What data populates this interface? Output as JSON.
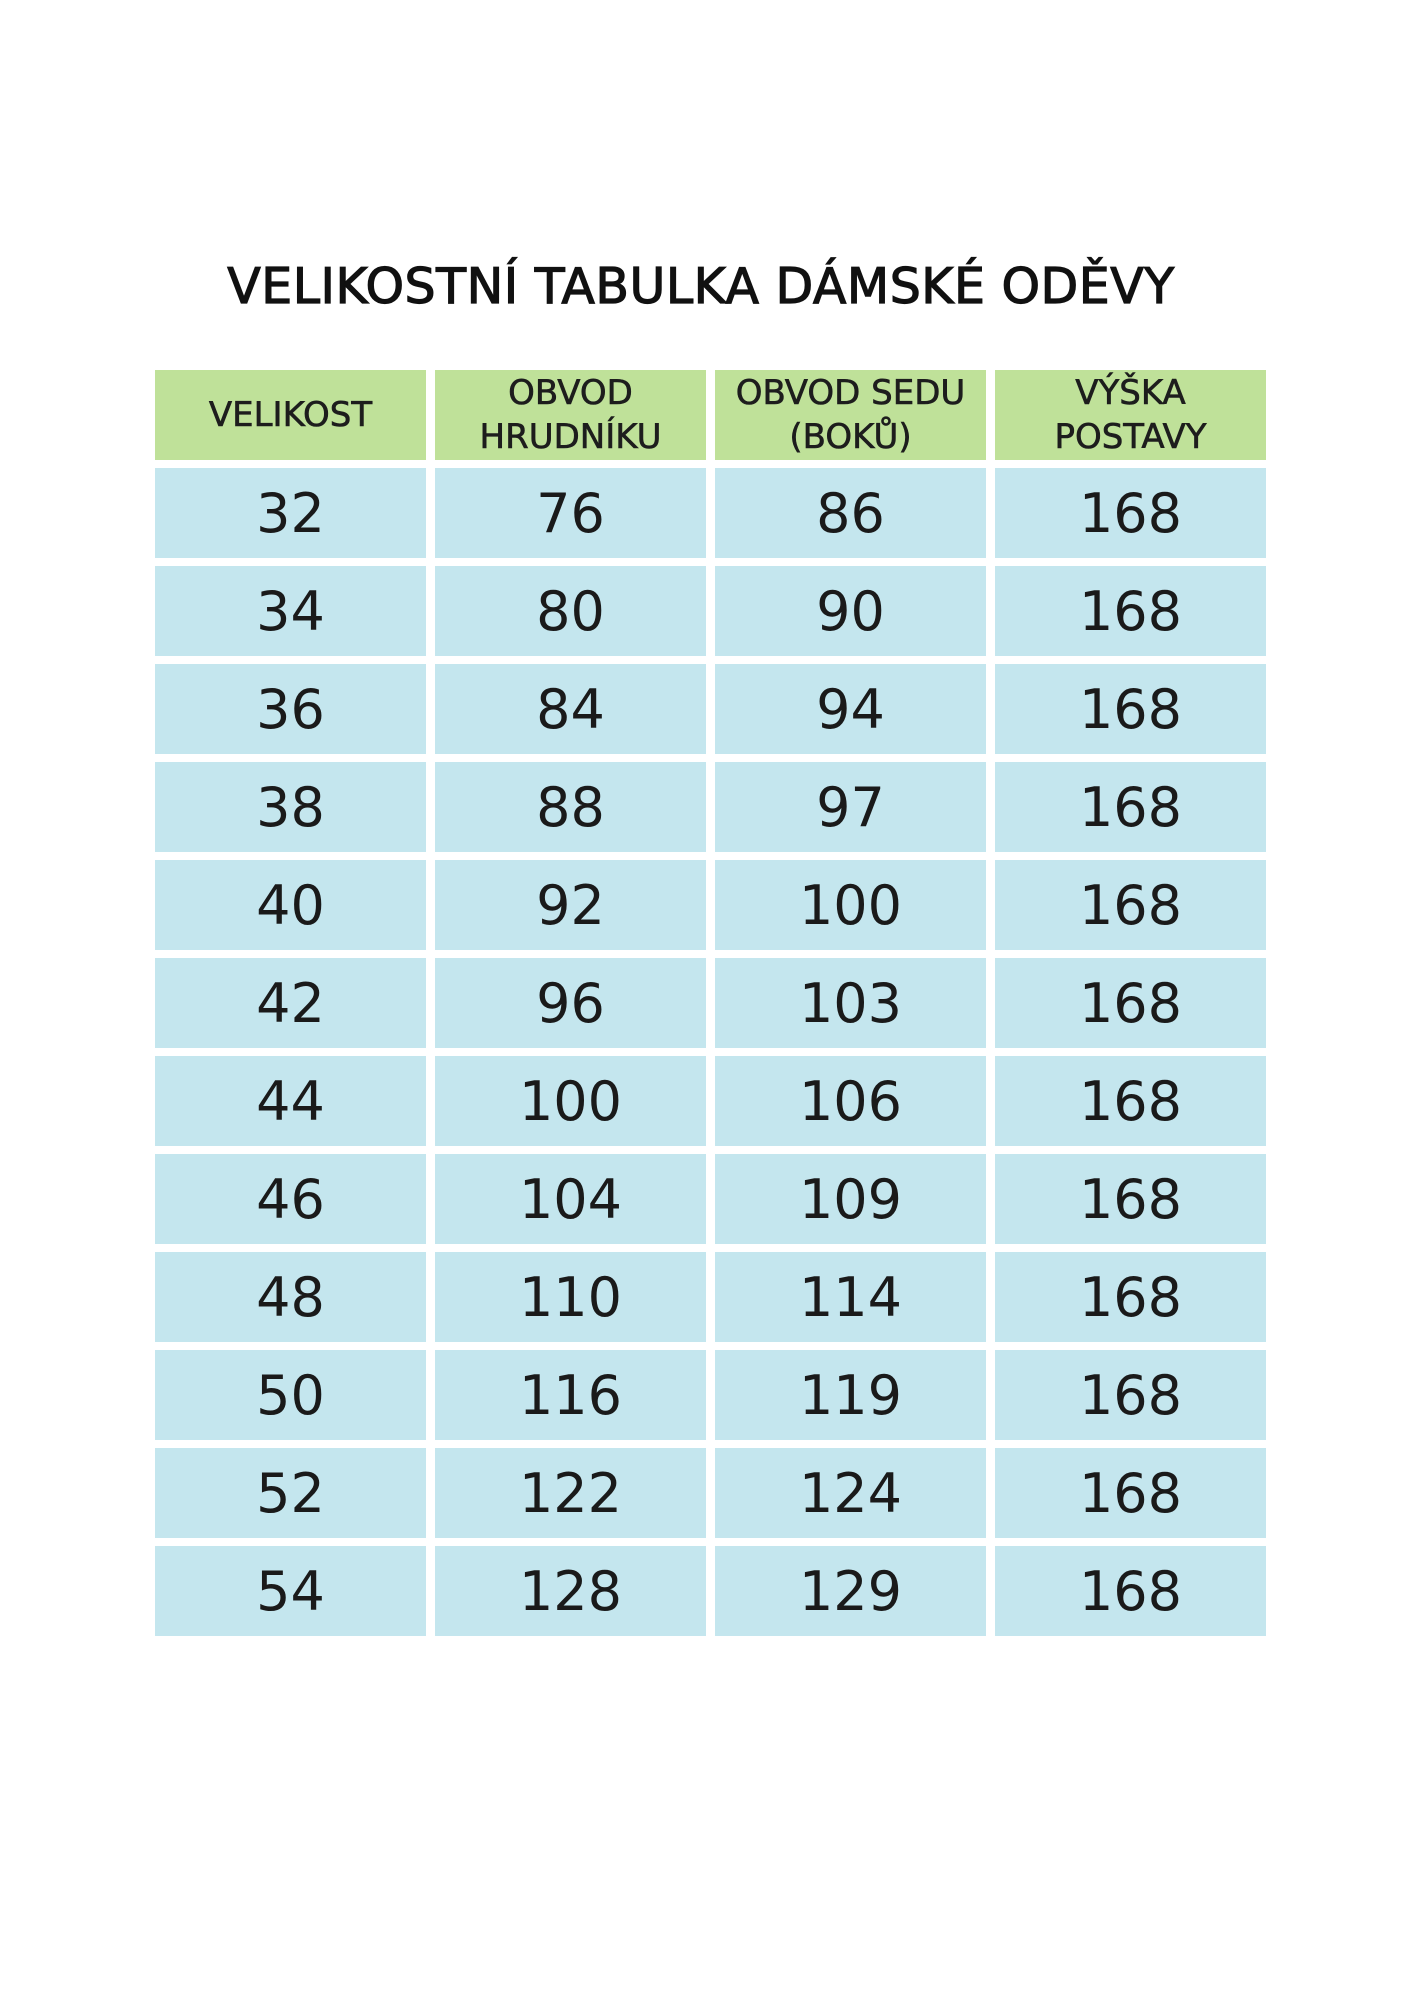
{
  "title": "VELIKOSTNÍ TABULKA DÁMSKÉ ODĚVY",
  "colors": {
    "header_bg": "#bfe199",
    "cell_bg": "#c4e6ee"
  },
  "headers": [
    {
      "line1": "VELIKOST",
      "line2": ""
    },
    {
      "line1": "OBVOD",
      "line2": "HRUDNÍKU"
    },
    {
      "line1": "OBVOD SEDU",
      "line2": "(BOKŮ)"
    },
    {
      "line1": "VÝŠKA",
      "line2": "POSTAVY"
    }
  ],
  "rows": [
    [
      "32",
      "76",
      "86",
      "168"
    ],
    [
      "34",
      "80",
      "90",
      "168"
    ],
    [
      "36",
      "84",
      "94",
      "168"
    ],
    [
      "38",
      "88",
      "97",
      "168"
    ],
    [
      "40",
      "92",
      "100",
      "168"
    ],
    [
      "42",
      "96",
      "103",
      "168"
    ],
    [
      "44",
      "100",
      "106",
      "168"
    ],
    [
      "46",
      "104",
      "109",
      "168"
    ],
    [
      "48",
      "110",
      "114",
      "168"
    ],
    [
      "50",
      "116",
      "119",
      "168"
    ],
    [
      "52",
      "122",
      "124",
      "168"
    ],
    [
      "54",
      "128",
      "129",
      "168"
    ]
  ]
}
